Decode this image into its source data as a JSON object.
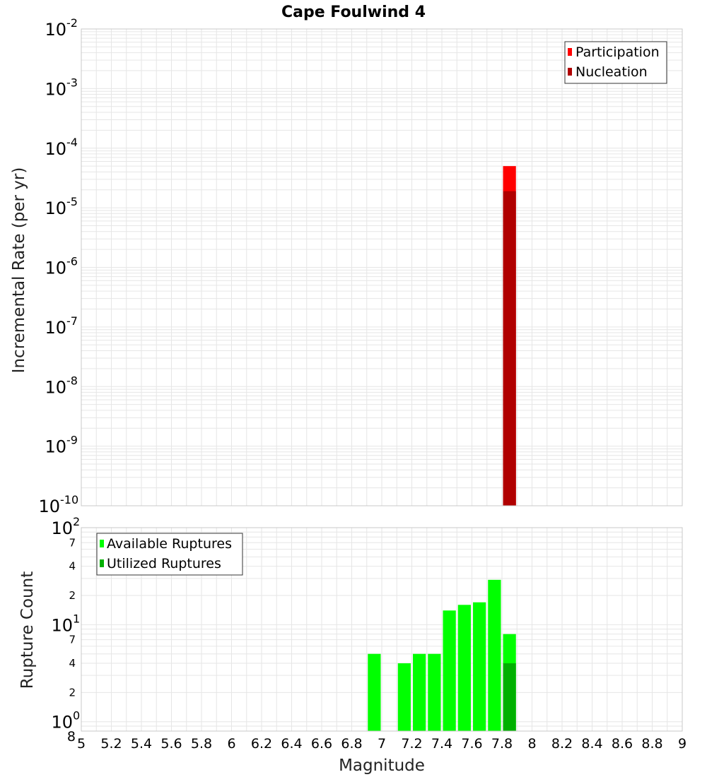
{
  "colors": {
    "participation": "#ff0000",
    "nucleation": "#b00000",
    "available": "#00ff00",
    "utilized": "#00b000",
    "grid": "#e6e6e6",
    "frame": "#c8c8c8"
  },
  "chart_data": [
    {
      "type": "bar",
      "title": "Cape Foulwind 4",
      "ylabel": "Incremental Rate (per yr)",
      "xlabel": "",
      "yscale": "log",
      "ylim": [
        1e-10,
        0.01
      ],
      "xlim": [
        5,
        9
      ],
      "bin_width": 0.1,
      "y_ticks": [
        {
          "value": 0.01,
          "base": "10",
          "exp": "-2"
        },
        {
          "value": 0.001,
          "base": "10",
          "exp": "-3"
        },
        {
          "value": 0.0001,
          "base": "10",
          "exp": "-4"
        },
        {
          "value": 1e-05,
          "base": "10",
          "exp": "-5"
        },
        {
          "value": 1e-06,
          "base": "10",
          "exp": "-6"
        },
        {
          "value": 1e-07,
          "base": "10",
          "exp": "-7"
        },
        {
          "value": 1e-08,
          "base": "10",
          "exp": "-8"
        },
        {
          "value": 1e-09,
          "base": "10",
          "exp": "-9"
        },
        {
          "value": 1e-10,
          "base": "10",
          "exp": "-10"
        }
      ],
      "legend_position": "top-right",
      "series": [
        {
          "name": "Participation",
          "color": "#ff0000",
          "x": [
            7.85
          ],
          "values": [
            5e-05
          ]
        },
        {
          "name": "Nucleation",
          "color": "#b00000",
          "x": [
            7.85
          ],
          "values": [
            1.9e-05
          ]
        }
      ]
    },
    {
      "type": "bar",
      "title": "",
      "ylabel": "Rupture Count",
      "xlabel": "Magnitude",
      "yscale": "log",
      "ylim": [
        0.8,
        100
      ],
      "xlim": [
        5,
        9
      ],
      "bin_width": 0.1,
      "x_ticks": [
        "5",
        "5.2",
        "5.4",
        "5.6",
        "5.8",
        "6",
        "6.2",
        "6.4",
        "6.6",
        "6.8",
        "7",
        "7.2",
        "7.4",
        "7.6",
        "7.8",
        "8",
        "8.2",
        "8.4",
        "8.6",
        "8.8",
        "9"
      ],
      "y_ticks": [
        {
          "value": 100,
          "base": "10",
          "exp": "2",
          "major": true
        },
        {
          "value": 70,
          "label": "7",
          "major": false
        },
        {
          "value": 40,
          "label": "4",
          "major": false
        },
        {
          "value": 20,
          "label": "2",
          "major": false
        },
        {
          "value": 10,
          "base": "10",
          "exp": "1",
          "major": true
        },
        {
          "value": 7,
          "label": "7",
          "major": false
        },
        {
          "value": 4,
          "label": "4",
          "major": false
        },
        {
          "value": 2,
          "label": "2",
          "major": false
        },
        {
          "value": 1,
          "base": "10",
          "exp": "0",
          "major": true
        },
        {
          "value": 0.8,
          "label": "8",
          "major": false
        }
      ],
      "legend_position": "top-left",
      "series": [
        {
          "name": "Available Ruptures",
          "color": "#00ff00",
          "x": [
            6.95,
            7.15,
            7.25,
            7.35,
            7.45,
            7.55,
            7.65,
            7.75,
            7.85
          ],
          "values": [
            5,
            4,
            5,
            5,
            14,
            16,
            17,
            29,
            8
          ]
        },
        {
          "name": "Utilized Ruptures",
          "color": "#00b000",
          "x": [
            7.85
          ],
          "values": [
            4
          ]
        }
      ]
    }
  ]
}
